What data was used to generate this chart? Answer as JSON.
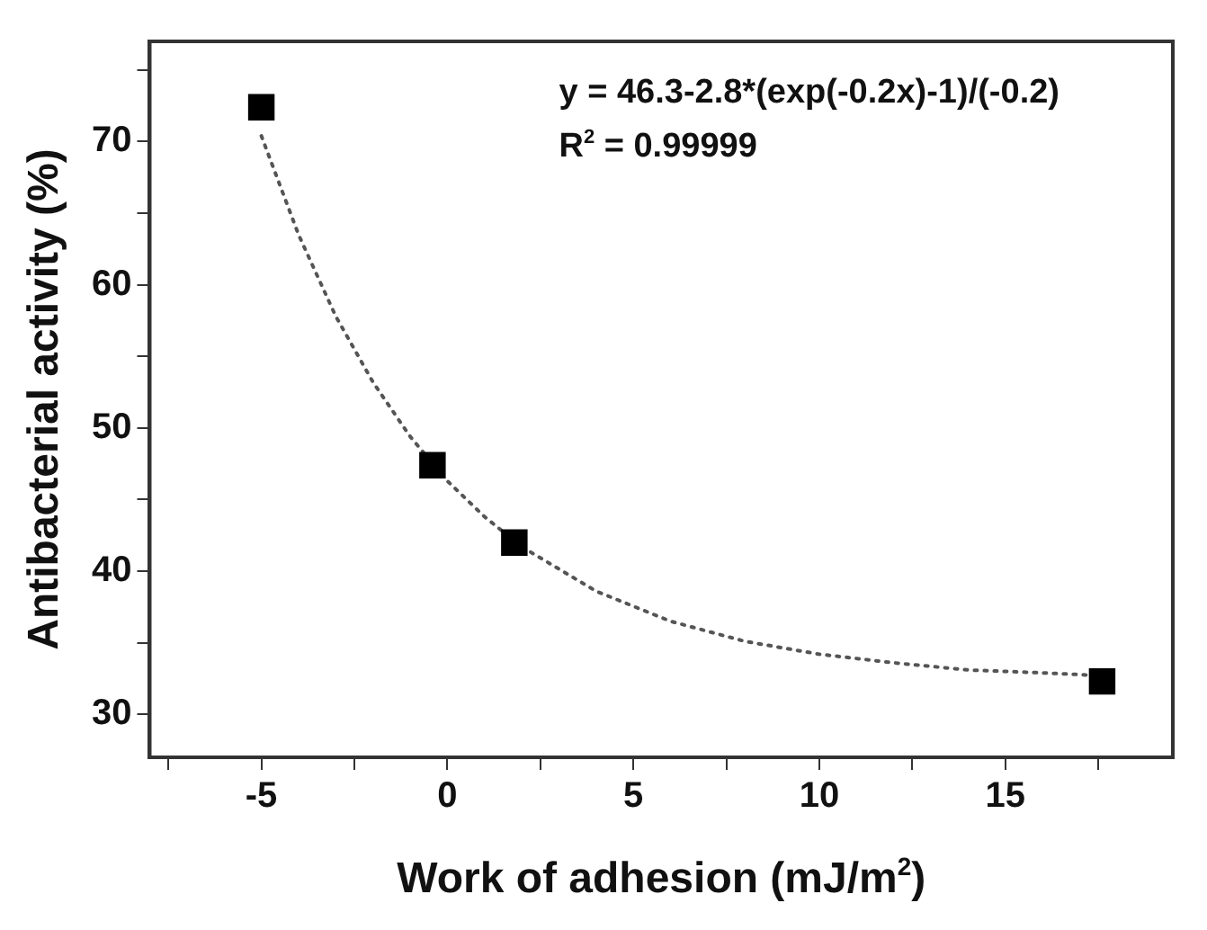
{
  "chart_data": {
    "type": "scatter",
    "xlabel": "Work of adhesion (mJ/m$^{2}$)",
    "ylabel": "Antibacterial activity (%)",
    "annotations": [
      "y = 46.3-2.8*(exp(-0.2x)-1)/(-0.2)",
      "R$^{2}$ = 0.99999"
    ],
    "xlim": [
      -8,
      19.5
    ],
    "xticks": [
      {
        "value": -7.5,
        "label": null
      },
      -5,
      {
        "value": -2.5,
        "label": null
      },
      0,
      {
        "value": 2.5,
        "label": null
      },
      5,
      {
        "value": 7.5,
        "label": null
      },
      10,
      {
        "value": 12.5,
        "label": null
      },
      15,
      {
        "value": 17.5,
        "label": null
      }
    ],
    "ylim": [
      27,
      77
    ],
    "yticks": [
      30,
      {
        "value": 35,
        "label": null
      },
      40,
      {
        "value": 45,
        "label": null
      },
      50,
      {
        "value": 55,
        "label": null
      },
      60,
      {
        "value": 65,
        "label": null
      },
      70,
      {
        "value": 75,
        "label": null
      }
    ],
    "grid": false,
    "legend": false,
    "series": [
      {
        "type": "scatter",
        "color": "#000000",
        "marker": "square",
        "x": [
          -5,
          -0.4,
          1.8,
          17.6
        ],
        "values": [
          72.4,
          47.4,
          42.0,
          32.3
        ]
      },
      {
        "type": "line",
        "color": "#555555",
        "marker": "none",
        "line_style": "dotted",
        "x": [
          -5,
          -4,
          -3,
          -2,
          -1,
          0,
          1,
          2,
          4,
          6,
          8,
          10,
          12,
          14,
          16,
          17.6
        ],
        "values": [
          70.4,
          63.5,
          57.8,
          53.2,
          49.4,
          46.3,
          43.8,
          41.7,
          38.6,
          36.5,
          35.1,
          34.2,
          33.6,
          33.1,
          32.9,
          32.7
        ]
      }
    ]
  }
}
